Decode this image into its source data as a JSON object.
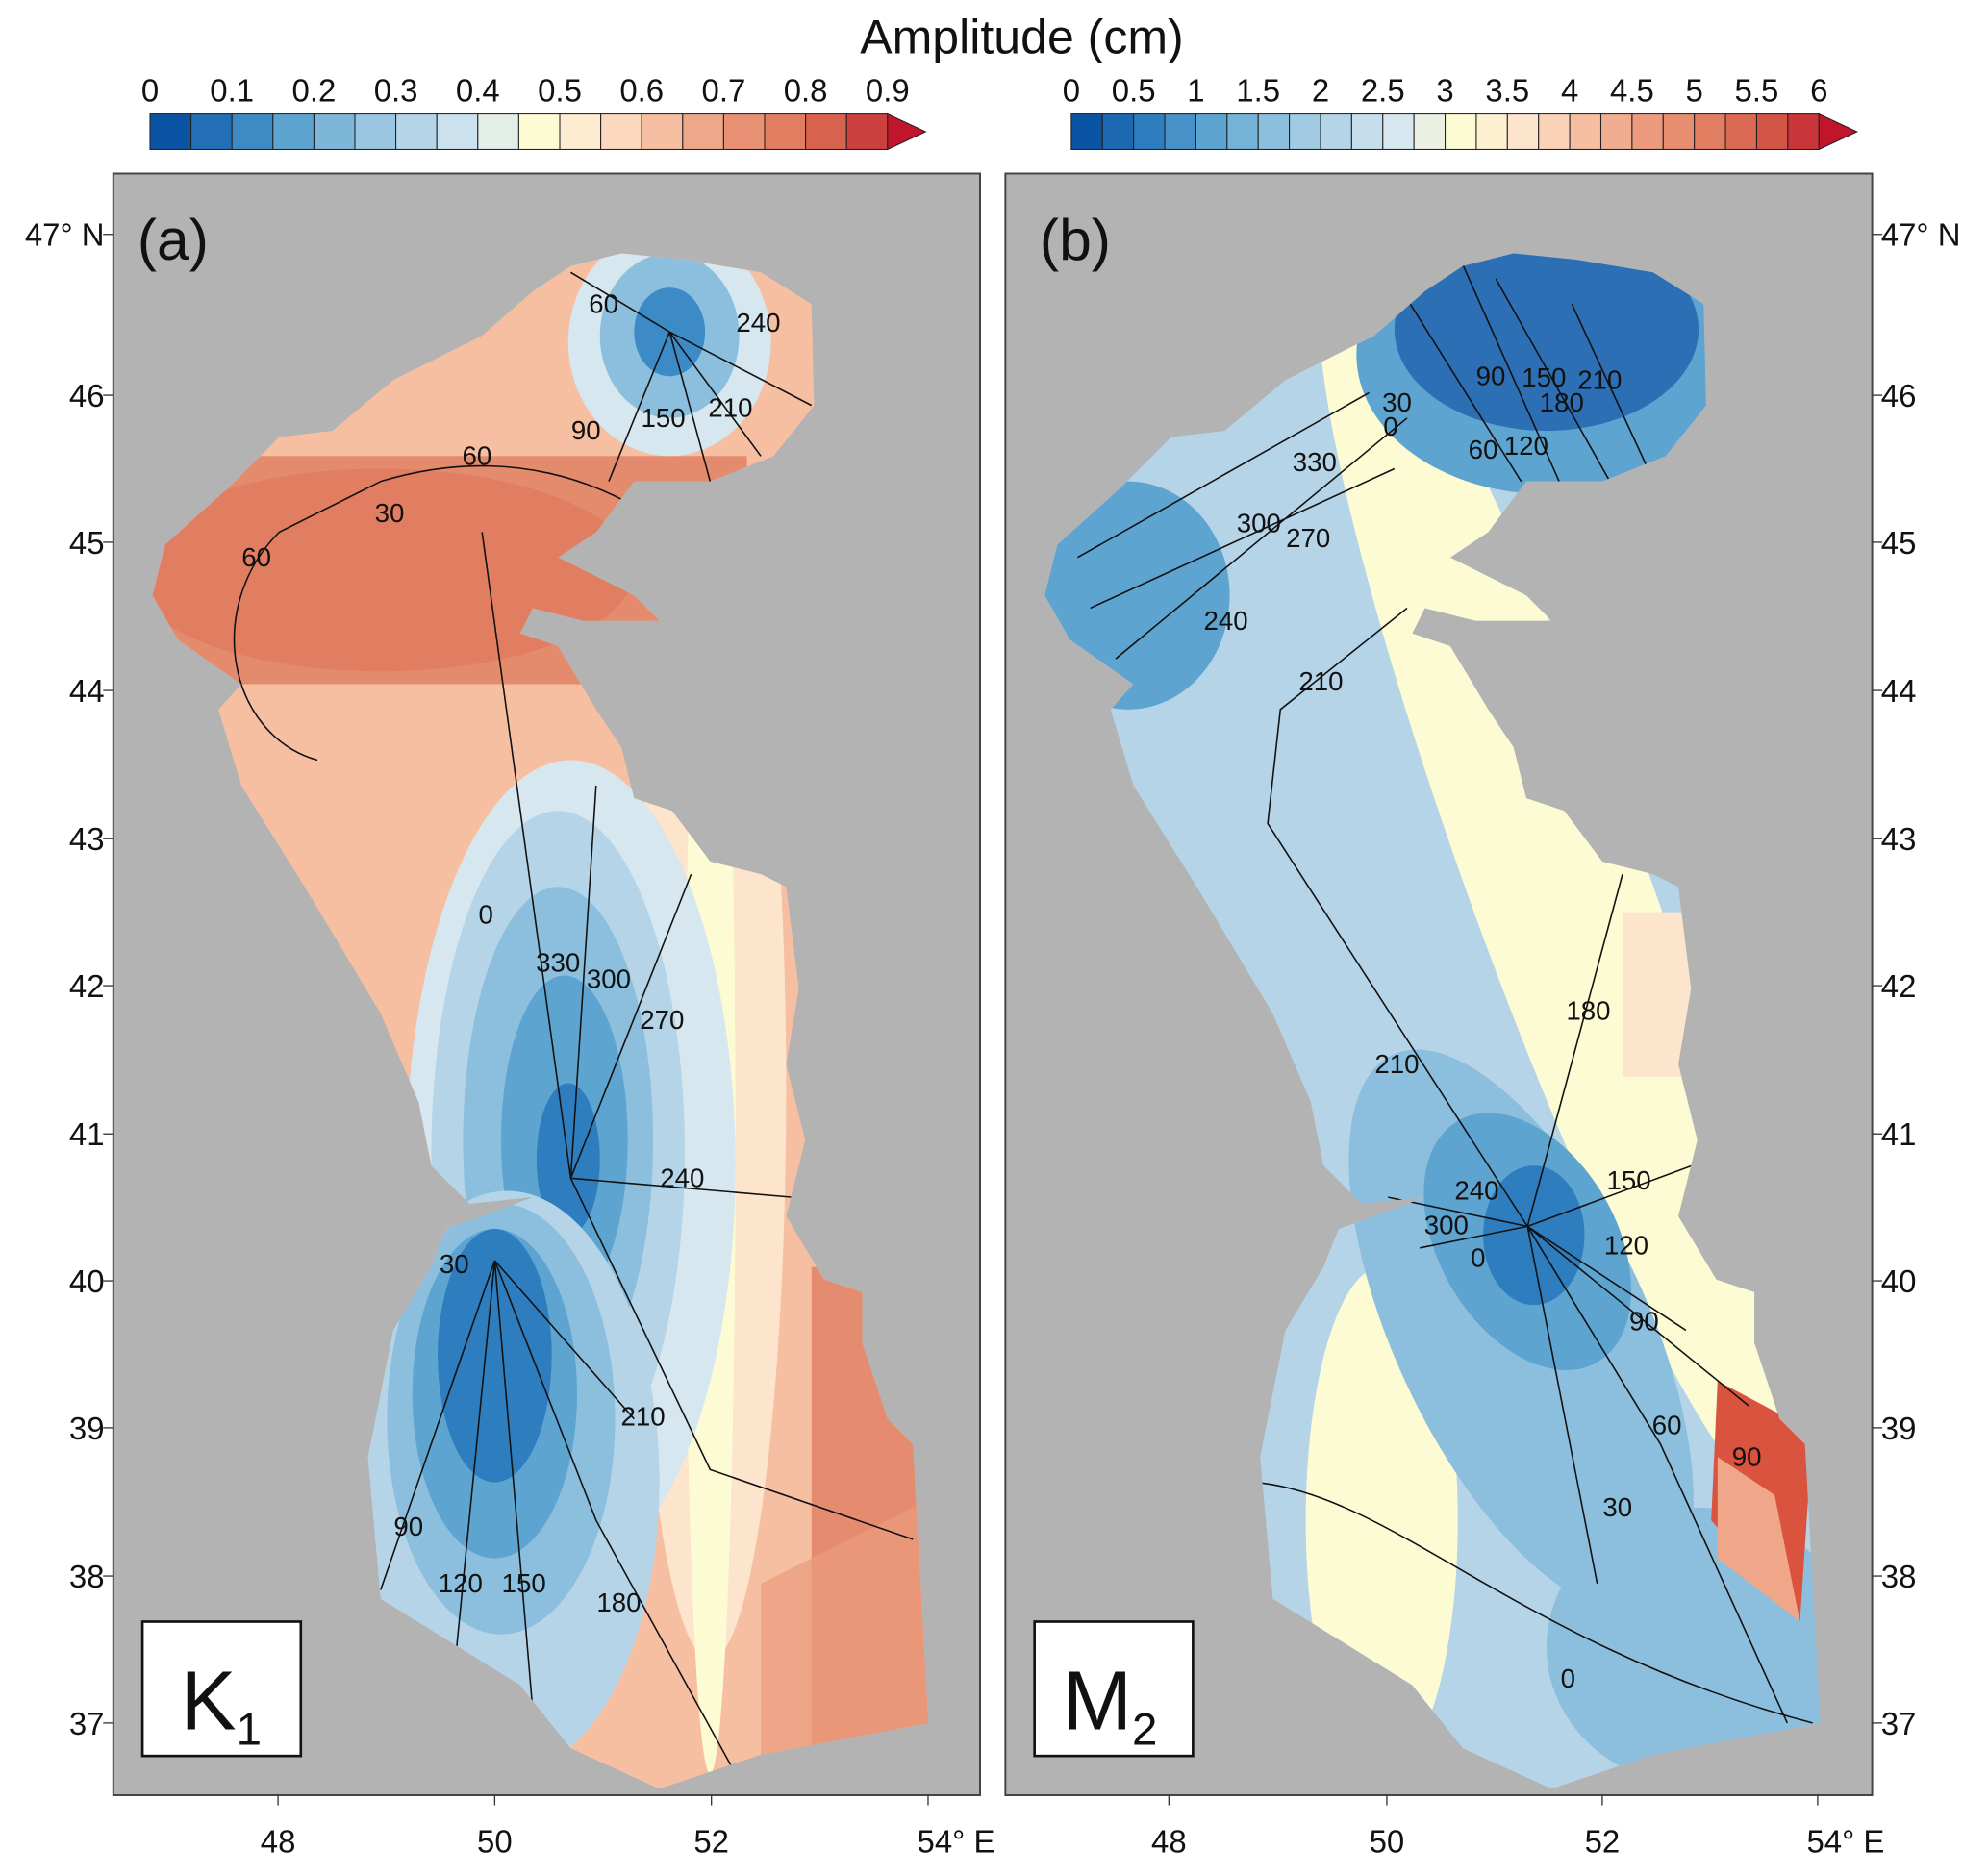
{
  "title": "Amplitude (cm)",
  "colorbars": [
    {
      "labels": [
        "0",
        "0.1",
        "0.2",
        "0.3",
        "0.4",
        "0.5",
        "0.6",
        "0.7",
        "0.8",
        "0.9"
      ],
      "min": 0,
      "max": 0.9,
      "step": 0.05
    },
    {
      "labels": [
        "0",
        "0.5",
        "1",
        "1.5",
        "2",
        "2.5",
        "3",
        "3.5",
        "4",
        "4.5",
        "5",
        "5.5",
        "6"
      ],
      "min": 0,
      "max": 6,
      "step": 0.25
    }
  ],
  "panels": [
    {
      "tag": "(a)",
      "constituent": "K",
      "subscript": "1",
      "phase_labels": [
        "60",
        "240",
        "90",
        "150",
        "210",
        "60",
        "30",
        "60",
        "0",
        "330",
        "300",
        "270",
        "240",
        "30",
        "210",
        "90",
        "120",
        "150",
        "180"
      ]
    },
    {
      "tag": "(b)",
      "constituent": "M",
      "subscript": "2",
      "phase_labels": [
        "30",
        "0",
        "90",
        "60",
        "150",
        "120",
        "180",
        "210",
        "330",
        "300",
        "270",
        "240",
        "210",
        "180",
        "210",
        "240",
        "150",
        "300",
        "120",
        "0",
        "90",
        "60",
        "30",
        "90",
        "0"
      ]
    }
  ],
  "lat_labels": [
    "47° N",
    "46",
    "45",
    "44",
    "43",
    "42",
    "41",
    "40",
    "39",
    "38",
    "37"
  ],
  "lon_labels": [
    "48",
    "50",
    "52",
    "54° E"
  ],
  "colors": {
    "land": "#b3b3b3",
    "blue_dark": "#0b54a4",
    "red_dark": "#c0152a"
  }
}
